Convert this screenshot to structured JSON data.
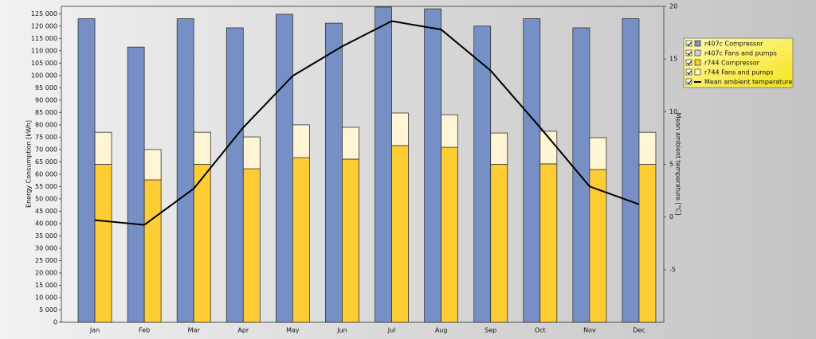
{
  "chart_data": {
    "type": "bar",
    "y_label": "Energy Consumption [kWh]",
    "y2_label": "Mean ambient temperature [°C]",
    "categories": [
      "Jan",
      "Feb",
      "Mar",
      "Apr",
      "May",
      "Jun",
      "Jul",
      "Aug",
      "Sep",
      "Oct",
      "Nov",
      "Dec"
    ],
    "series": [
      {
        "name": "r407c Compressor",
        "color": "#7690c6",
        "stack": 0,
        "values": [
          123000,
          111500,
          123000,
          119300,
          124800,
          121200,
          127700,
          127000,
          120000,
          123000,
          119300,
          123000
        ]
      },
      {
        "name": "r407c Fans and pumps",
        "color": "#c9cdf0",
        "stack": 0,
        "values": [
          0,
          0,
          0,
          0,
          0,
          0,
          0,
          0,
          0,
          0,
          0,
          0
        ]
      },
      {
        "name": "r744 Compressor",
        "color": "#fecc33",
        "stack": 1,
        "values": [
          64000,
          57700,
          64000,
          62200,
          66700,
          66100,
          71600,
          70900,
          64000,
          64200,
          61900,
          64000
        ]
      },
      {
        "name": "r744 Fans and pumps",
        "color": "#fff5d4",
        "stack": 1,
        "values": [
          13000,
          12300,
          13000,
          12900,
          13300,
          12900,
          13200,
          13200,
          12700,
          13200,
          12900,
          13000
        ]
      },
      {
        "name": "Mean ambient temperature",
        "color": "#000000",
        "type": "line",
        "axis": "y2",
        "values": [
          -0.3,
          -0.75,
          2.7,
          8.5,
          13.4,
          16.2,
          18.6,
          17.8,
          13.9,
          8.5,
          2.9,
          1.2
        ]
      }
    ],
    "ylim": [
      0,
      128000
    ],
    "yticks": [
      0,
      {
        "value": 5000,
        "label": "5 000"
      },
      {
        "value": 10000,
        "label": "10 000"
      },
      {
        "value": 15000,
        "label": "15 000"
      },
      {
        "value": 20000,
        "label": "20 000"
      },
      {
        "value": 25000,
        "label": "25 000"
      },
      {
        "value": 30000,
        "label": "30 000"
      },
      {
        "value": 35000,
        "label": "35 000"
      },
      {
        "value": 40000,
        "label": "40 000"
      },
      {
        "value": 45000,
        "label": "45 000"
      },
      {
        "value": 50000,
        "label": "50 000"
      },
      {
        "value": 55000,
        "label": "55 000"
      },
      {
        "value": 60000,
        "label": "60 000"
      },
      {
        "value": 65000,
        "label": "65 000"
      },
      {
        "value": 70000,
        "label": "70 000"
      },
      {
        "value": 75000,
        "label": "75 000"
      },
      {
        "value": 80000,
        "label": "80 000"
      },
      {
        "value": 85000,
        "label": "85 000"
      },
      {
        "value": 90000,
        "label": "90 000"
      },
      {
        "value": 95000,
        "label": "95 000"
      },
      {
        "value": 100000,
        "label": "100 000"
      },
      {
        "value": 105000,
        "label": "105 000"
      },
      {
        "value": 110000,
        "label": "110 000"
      },
      {
        "value": 115000,
        "label": "115 000"
      },
      {
        "value": 120000,
        "label": "120 000"
      },
      {
        "value": 125000,
        "label": "125 000"
      }
    ],
    "y2lim": [
      -10,
      20
    ],
    "y2ticks": [
      -5,
      0,
      5,
      10,
      15,
      20
    ],
    "legend": "right"
  }
}
